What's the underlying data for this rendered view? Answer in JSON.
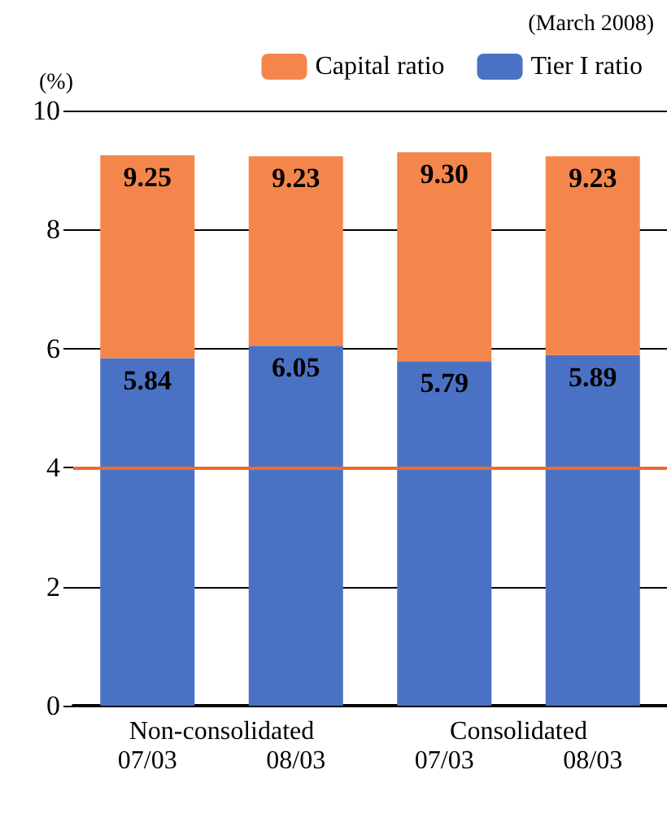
{
  "chart_data": {
    "type": "bar",
    "stacked": true,
    "ylabel": "(%)",
    "annotations": [
      "(March 2008)",
      "Non-consolidated",
      "Consolidated"
    ],
    "categories": [
      "07/03",
      "08/03",
      "07/03",
      "08/03"
    ],
    "series": [
      {
        "name": "Tier I ratio",
        "color": "#4a72c4",
        "values": [
          5.84,
          6.05,
          5.79,
          5.89
        ],
        "value_labels": [
          "5.84",
          "6.05",
          "5.79",
          "5.89"
        ]
      },
      {
        "name": "Capital ratio",
        "color": "#f4864c",
        "values": [
          3.41,
          3.18,
          3.51,
          3.34
        ]
      }
    ],
    "totals": [
      "9.25",
      "9.23",
      "9.30",
      "9.23"
    ],
    "ylim": [
      0,
      10
    ],
    "yticks": [
      0,
      2,
      4,
      6,
      8,
      10
    ],
    "grid": "y",
    "legend": "top",
    "ref_lines": [
      {
        "axis": "y",
        "value": 4,
        "color": "#f06a2a"
      }
    ]
  }
}
